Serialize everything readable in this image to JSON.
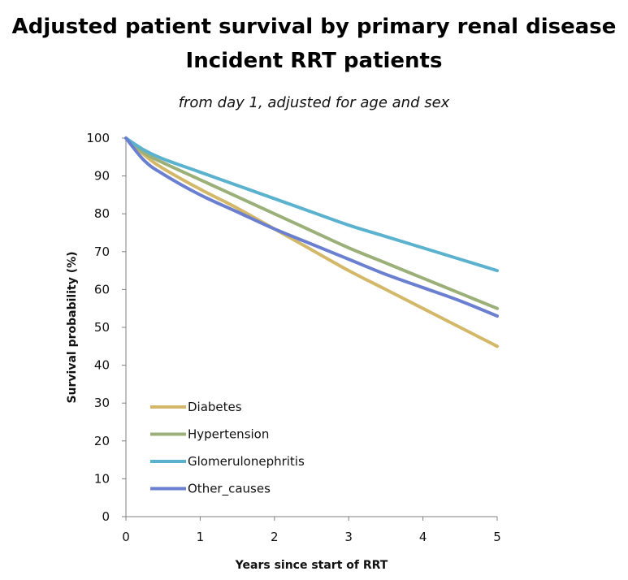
{
  "chart_data": {
    "type": "line",
    "title": "Adjusted patient survival by primary renal disease",
    "title_line2": "Incident RRT patients",
    "subtitle": "from day 1, adjusted for age and sex",
    "xlabel": "Years since start of RRT",
    "ylabel": "Survival probability (%)",
    "xlim": [
      0,
      5
    ],
    "ylim": [
      0,
      100
    ],
    "x_ticks": [
      0,
      1,
      2,
      3,
      4,
      5
    ],
    "y_ticks": [
      0,
      10,
      20,
      30,
      40,
      50,
      60,
      70,
      80,
      90,
      100
    ],
    "grid": false,
    "legend_position": "bottom-left",
    "x": [
      0,
      0.25,
      0.5,
      1,
      1.5,
      2,
      2.5,
      3,
      3.5,
      4,
      4.5,
      5
    ],
    "series": [
      {
        "name": "Diabetes",
        "color": "#D4B86A",
        "values": [
          100,
          95.5,
          92,
          86.5,
          81.5,
          76,
          70.5,
          65,
          60,
          55,
          50,
          45
        ]
      },
      {
        "name": "Hypertension",
        "color": "#9BAF78",
        "values": [
          100,
          96,
          93.5,
          89,
          84.5,
          80,
          75.5,
          71,
          67,
          63,
          59,
          55
        ]
      },
      {
        "name": "Glomerulonephritis",
        "color": "#5BB2CF",
        "values": [
          100,
          96.8,
          94.5,
          91,
          87.5,
          84,
          80.5,
          77,
          74,
          71,
          68,
          65
        ]
      },
      {
        "name": "Other_causes",
        "color": "#6A7FD0",
        "values": [
          100,
          94,
          90.5,
          85,
          80.5,
          76,
          72,
          68,
          64,
          60.5,
          57,
          53
        ]
      }
    ]
  }
}
